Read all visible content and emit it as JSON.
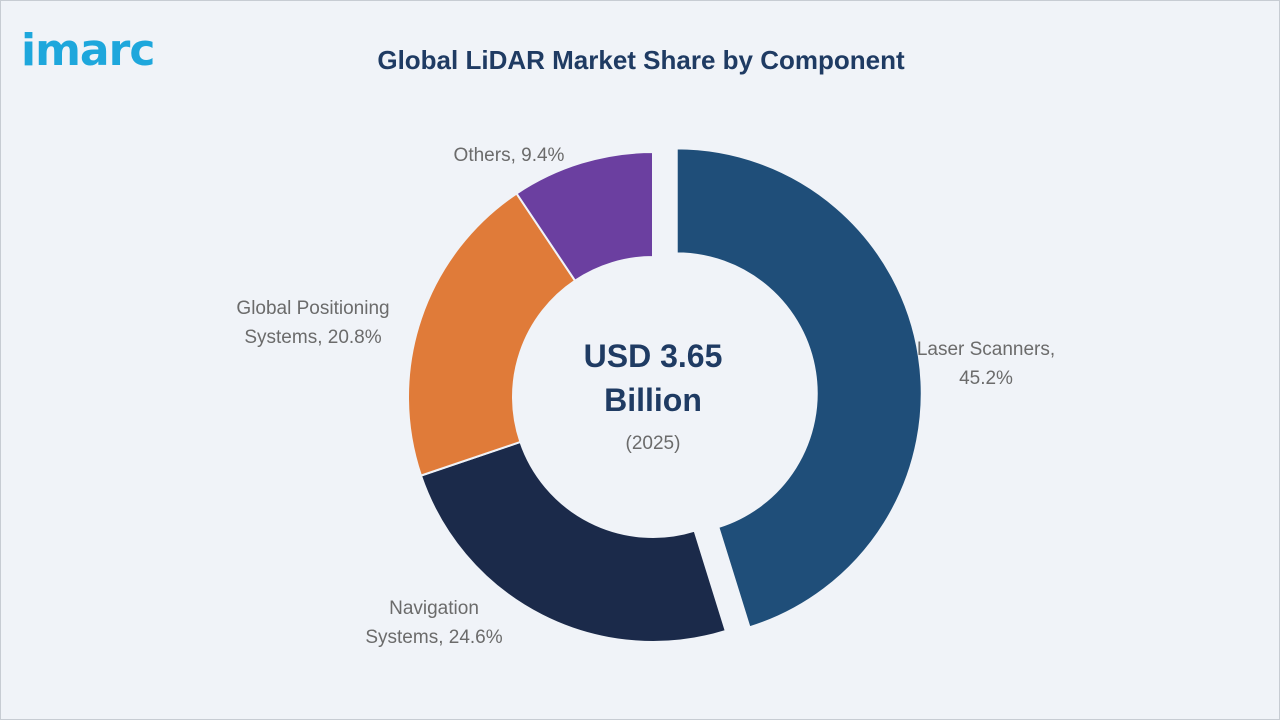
{
  "brand": {
    "logo_text": "imarc",
    "logo_color": "#1ea7dc"
  },
  "header": {
    "title": "Global LiDAR Market Share by Component"
  },
  "center": {
    "line1": "USD 3.65",
    "line2": "Billion",
    "year": "(2025)"
  },
  "chart_data": {
    "type": "pie",
    "title": "Global LiDAR Market Share by Component",
    "unit": "%",
    "slices": [
      {
        "label_lines": [
          "Laser Scanners,",
          "45.2%"
        ],
        "name": "Laser Scanners",
        "value": 45.2,
        "color": "#1f4e79",
        "exploded": true
      },
      {
        "label_lines": [
          "Navigation",
          "Systems, 24.6%"
        ],
        "name": "Navigation Systems",
        "value": 24.6,
        "color": "#1b2a4a",
        "exploded": false
      },
      {
        "label_lines": [
          "Global Positioning",
          "Systems, 20.8%"
        ],
        "name": "Global Positioning Systems",
        "value": 20.8,
        "color": "#e07b39",
        "exploded": false
      },
      {
        "label_lines": [
          "Others, 9.4%"
        ],
        "name": "Others",
        "value": 9.4,
        "color": "#6b3fa0",
        "exploded": false
      }
    ]
  }
}
